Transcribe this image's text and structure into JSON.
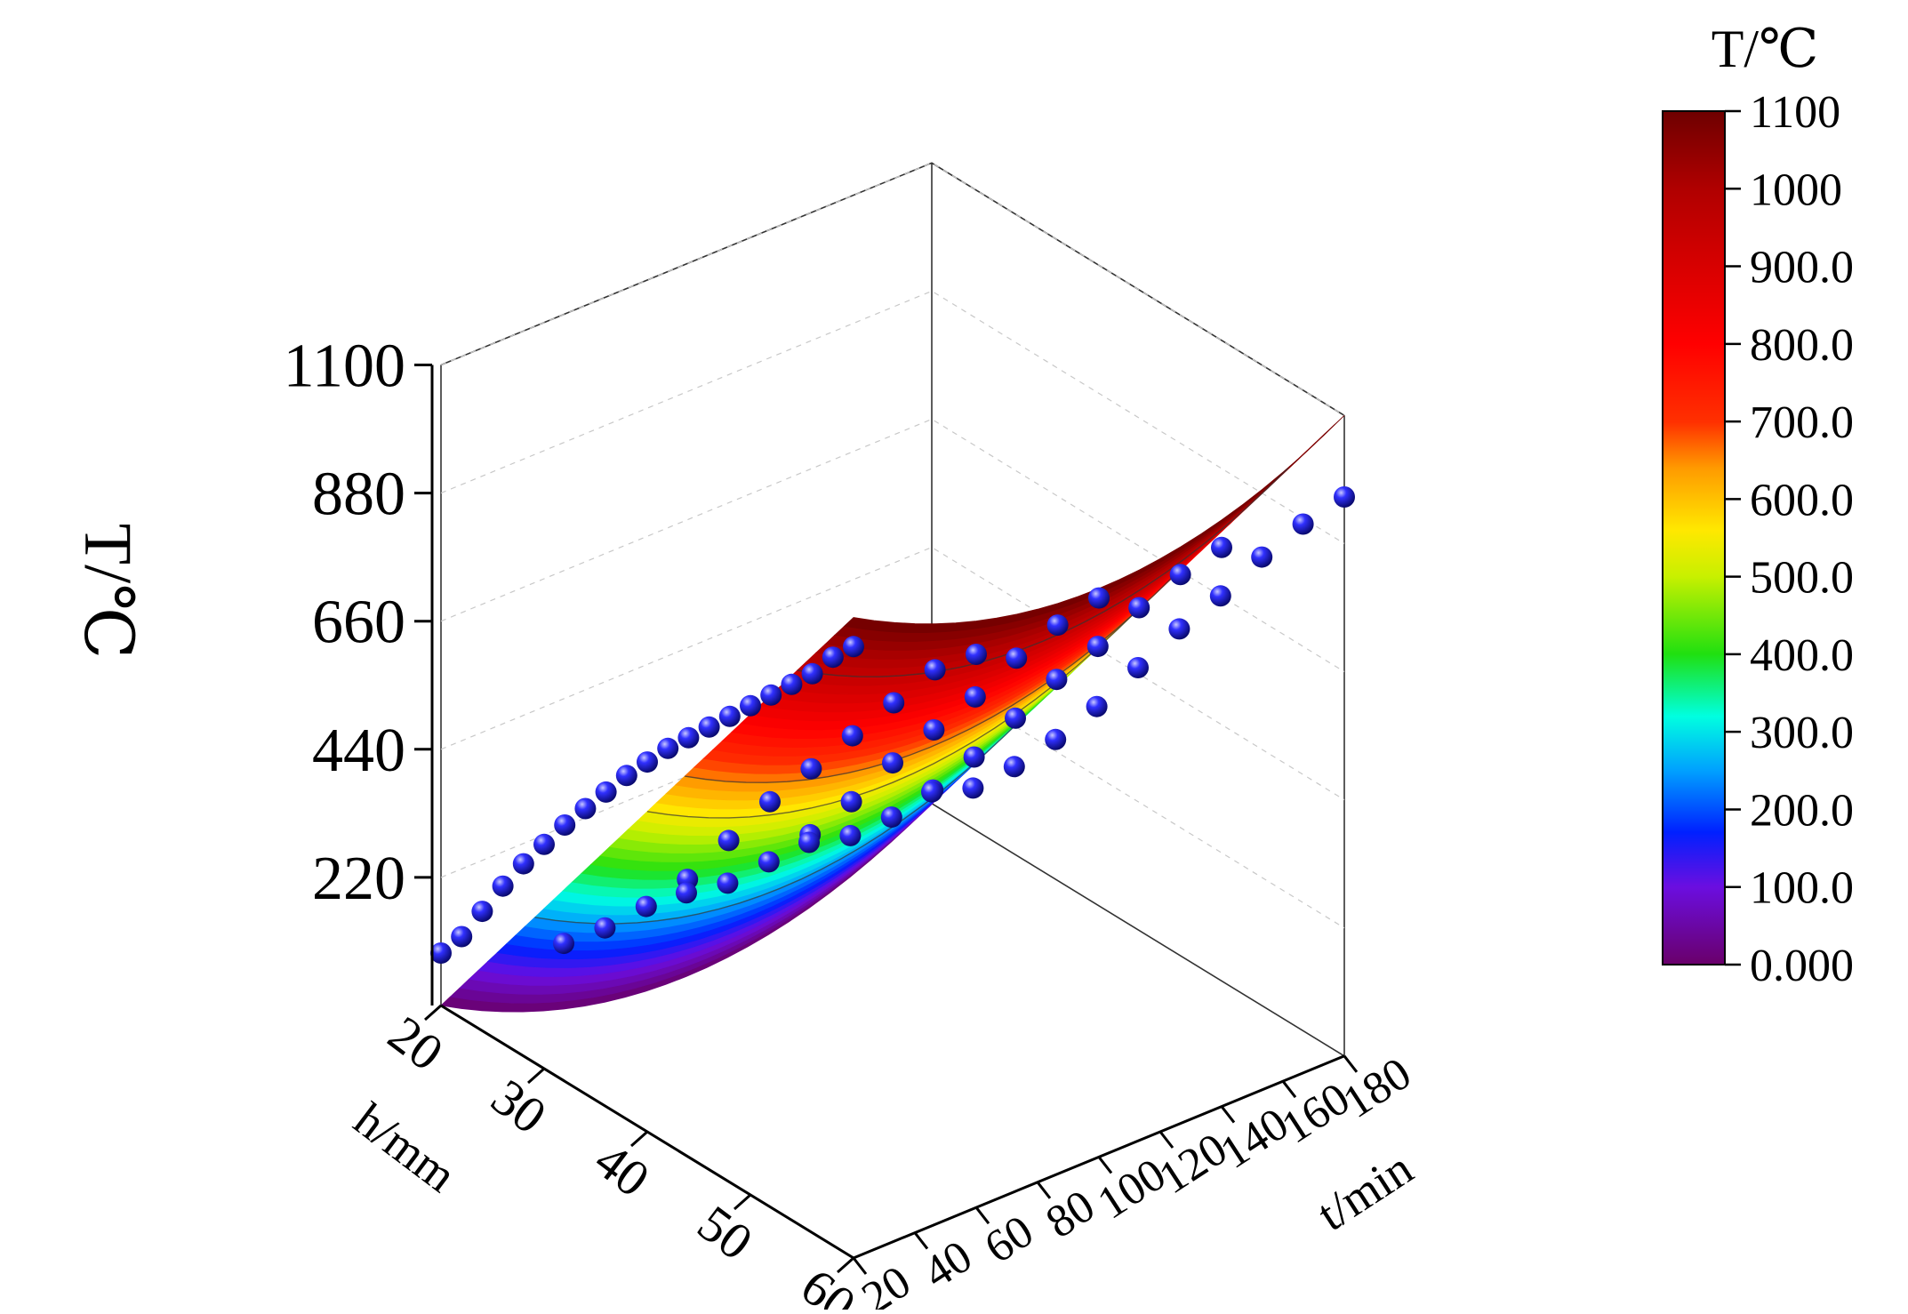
{
  "chart_data": {
    "type": "surface3d",
    "axes": {
      "z": {
        "label": "T/℃",
        "ticks": [
          "220",
          "440",
          "660",
          "880",
          "1100"
        ],
        "range": [
          0,
          1100
        ]
      },
      "h": {
        "label": "h/mm",
        "ticks": [
          "20",
          "30",
          "40",
          "50",
          "60"
        ],
        "range": [
          20,
          60
        ]
      },
      "t": {
        "label": "t/min",
        "ticks": [
          "20",
          "40",
          "60",
          "80",
          "100",
          "120",
          "140",
          "160",
          "180"
        ],
        "range": [
          20,
          180
        ]
      }
    },
    "colorbar": {
      "title": "T/℃",
      "ticks": [
        "0.000",
        "100.0",
        "200.0",
        "300.0",
        "400.0",
        "500.0",
        "600.0",
        "700.0",
        "800.0",
        "900.0",
        "1000",
        "1100"
      ],
      "range": [
        0,
        1100
      ],
      "stops": [
        {
          "v": 0,
          "c": "#6a006a"
        },
        {
          "v": 100,
          "c": "#6b0ee0"
        },
        {
          "v": 170,
          "c": "#0020ff"
        },
        {
          "v": 250,
          "c": "#00a0ff"
        },
        {
          "v": 320,
          "c": "#00ffe0"
        },
        {
          "v": 400,
          "c": "#20e010"
        },
        {
          "v": 500,
          "c": "#c8f000"
        },
        {
          "v": 560,
          "c": "#ffe800"
        },
        {
          "v": 640,
          "c": "#ff9a00"
        },
        {
          "v": 700,
          "c": "#ff3000"
        },
        {
          "v": 800,
          "c": "#ff0000"
        },
        {
          "v": 1000,
          "c": "#b00000"
        },
        {
          "v": 1100,
          "c": "#6e0000"
        }
      ]
    },
    "contour_lines": [
      250,
      550,
      650,
      950
    ],
    "surface_color_bands": 44,
    "marker_color": "#1a1ae0",
    "series": [
      {
        "t": 20,
        "h": [
          20,
          22,
          24,
          26,
          28,
          30,
          32,
          34,
          36,
          38,
          40,
          42,
          44,
          46,
          48,
          50,
          52,
          54,
          56,
          58,
          60
        ],
        "T": [
          90,
          140,
          205,
          270,
          330,
          385,
          440,
          490,
          540,
          590,
          635,
          680,
          720,
          760,
          800,
          840,
          880,
          920,
          960,
          1010,
          1050
        ]
      },
      {
        "t": 60,
        "h": [
          20,
          24,
          28,
          32,
          36,
          40,
          44,
          48,
          52,
          56,
          60
        ],
        "T": [
          20,
          90,
          170,
          260,
          370,
          480,
          580,
          680,
          780,
          880,
          950
        ]
      },
      {
        "t": 100,
        "h": [
          20,
          24,
          28,
          32,
          36,
          40,
          44,
          48,
          52,
          56,
          60
        ],
        "T": [
          20,
          80,
          160,
          250,
          350,
          460,
          560,
          660,
          770,
          870,
          960
        ]
      },
      {
        "t": 140,
        "h": [
          20,
          24,
          28,
          32,
          36,
          40,
          44,
          48,
          52,
          56,
          60
        ],
        "T": [
          20,
          75,
          150,
          240,
          340,
          450,
          560,
          660,
          770,
          870,
          960
        ]
      },
      {
        "t": 180,
        "h": [
          20,
          24,
          28,
          32,
          36,
          40,
          44,
          48,
          52,
          56,
          60
        ],
        "T": [
          20,
          70,
          150,
          240,
          340,
          450,
          560,
          660,
          770,
          870,
          960
        ]
      }
    ]
  }
}
